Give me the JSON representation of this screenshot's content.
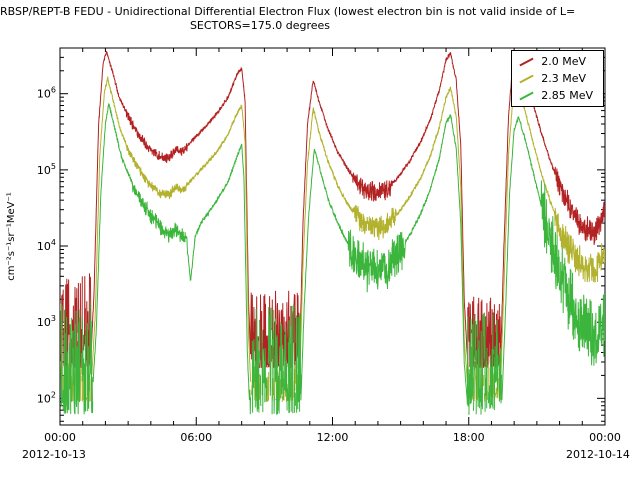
{
  "chart_data": {
    "type": "line",
    "title": "RBSP/REPT-B  FEDU - Unidirectional Differential Electron Flux (lowest electron bin is not valid inside of L=",
    "subtitle": "SECTORS=175.0 degrees",
    "ylabel": "cm⁻²s⁻¹sr⁻¹MeV⁻¹",
    "x_range_hours": [
      0,
      24
    ],
    "ylog_range": [
      1.65,
      6.6
    ],
    "x_start_date": "2012-10-13",
    "x_end_date": "2012-10-14",
    "xticks": [
      {
        "hour": 0,
        "label": "00:00"
      },
      {
        "hour": 6,
        "label": "06:00"
      },
      {
        "hour": 12,
        "label": "12:00"
      },
      {
        "hour": 18,
        "label": "18:00"
      },
      {
        "hour": 24,
        "label": "00:00"
      }
    ],
    "yticks_exp": [
      2,
      3,
      4,
      5,
      6
    ],
    "legend_position": "top-right",
    "series": [
      {
        "name": "2.0 MeV",
        "color": "#b22222",
        "anchors": [
          [
            1.35,
            300
          ],
          [
            1.5,
            2500
          ],
          [
            1.7,
            400000
          ],
          [
            1.9,
            2500000
          ],
          [
            2.05,
            3500000
          ],
          [
            2.3,
            2000000
          ],
          [
            2.6,
            900000
          ],
          [
            3.0,
            500000
          ],
          [
            3.4,
            300000
          ],
          [
            3.9,
            190000
          ],
          [
            4.4,
            150000
          ],
          [
            4.8,
            140000
          ],
          [
            5.1,
            190000
          ],
          [
            5.4,
            170000
          ],
          [
            5.8,
            240000
          ],
          [
            6.2,
            320000
          ],
          [
            6.6,
            430000
          ],
          [
            7.0,
            600000
          ],
          [
            7.4,
            900000
          ],
          [
            7.8,
            1800000
          ],
          [
            8.0,
            2200000
          ],
          [
            8.15,
            800000
          ],
          [
            8.3,
            2000
          ],
          [
            8.4,
            300
          ],
          [
            10.55,
            300
          ],
          [
            10.7,
            20000
          ],
          [
            10.9,
            400000
          ],
          [
            11.15,
            1500000
          ],
          [
            11.4,
            800000
          ],
          [
            11.8,
            350000
          ],
          [
            12.2,
            180000
          ],
          [
            12.6,
            110000
          ],
          [
            13.0,
            75000
          ],
          [
            13.4,
            55000
          ],
          [
            13.9,
            50000
          ],
          [
            14.4,
            55000
          ],
          [
            14.9,
            80000
          ],
          [
            15.4,
            130000
          ],
          [
            15.9,
            240000
          ],
          [
            16.3,
            450000
          ],
          [
            16.7,
            1100000
          ],
          [
            17.0,
            2800000
          ],
          [
            17.2,
            3400000
          ],
          [
            17.45,
            1500000
          ],
          [
            17.65,
            200000
          ],
          [
            17.8,
            2000
          ],
          [
            17.95,
            300
          ],
          [
            19.4,
            300
          ],
          [
            19.55,
            10000
          ],
          [
            19.75,
            500000
          ],
          [
            19.95,
            2800000
          ],
          [
            20.15,
            3700000
          ],
          [
            20.45,
            2000000
          ],
          [
            20.8,
            800000
          ],
          [
            21.2,
            300000
          ],
          [
            21.6,
            130000
          ],
          [
            22.0,
            60000
          ],
          [
            22.4,
            33000
          ],
          [
            22.8,
            21000
          ],
          [
            23.2,
            16000
          ],
          [
            23.6,
            15000
          ],
          [
            24.0,
            28000
          ]
        ],
        "noise": [
          [
            0,
            1.35,
            250,
            4500,
            0.05,
            2
          ],
          [
            8.4,
            10.55,
            250,
            2600,
            0.05,
            2
          ],
          [
            17.95,
            19.4,
            250,
            2200,
            0.05,
            2
          ]
        ],
        "rough": [
          [
            2.9,
            5.6,
            0.05
          ],
          [
            12.9,
            14.6,
            0.1
          ],
          [
            21.8,
            24,
            0.13
          ]
        ]
      },
      {
        "name": "2.3 MeV",
        "color": "#b2b22e",
        "anchors": [
          [
            1.4,
            200
          ],
          [
            1.55,
            1200
          ],
          [
            1.75,
            150000
          ],
          [
            1.95,
            1000000
          ],
          [
            2.1,
            1600000
          ],
          [
            2.35,
            800000
          ],
          [
            2.65,
            340000
          ],
          [
            3.0,
            190000
          ],
          [
            3.4,
            110000
          ],
          [
            3.9,
            66000
          ],
          [
            4.4,
            50000
          ],
          [
            4.8,
            46000
          ],
          [
            5.1,
            60000
          ],
          [
            5.4,
            54000
          ],
          [
            5.8,
            74000
          ],
          [
            6.2,
            100000
          ],
          [
            6.6,
            135000
          ],
          [
            7.0,
            190000
          ],
          [
            7.4,
            290000
          ],
          [
            7.8,
            560000
          ],
          [
            8.0,
            700000
          ],
          [
            8.15,
            240000
          ],
          [
            8.3,
            700
          ],
          [
            8.4,
            150
          ],
          [
            10.55,
            150
          ],
          [
            10.7,
            6000
          ],
          [
            10.9,
            120000
          ],
          [
            11.15,
            650000
          ],
          [
            11.4,
            320000
          ],
          [
            11.8,
            130000
          ],
          [
            12.2,
            65000
          ],
          [
            12.6,
            38000
          ],
          [
            13.0,
            26000
          ],
          [
            13.4,
            19000
          ],
          [
            13.9,
            17000
          ],
          [
            14.4,
            19000
          ],
          [
            14.9,
            27000
          ],
          [
            15.4,
            44000
          ],
          [
            15.9,
            80000
          ],
          [
            16.3,
            150000
          ],
          [
            16.7,
            360000
          ],
          [
            17.0,
            900000
          ],
          [
            17.2,
            1200000
          ],
          [
            17.45,
            500000
          ],
          [
            17.65,
            60000
          ],
          [
            17.8,
            600
          ],
          [
            17.95,
            150
          ],
          [
            19.4,
            150
          ],
          [
            19.55,
            3000
          ],
          [
            19.75,
            160000
          ],
          [
            19.95,
            900000
          ],
          [
            20.15,
            1250000
          ],
          [
            20.45,
            650000
          ],
          [
            20.8,
            250000
          ],
          [
            21.2,
            90000
          ],
          [
            21.6,
            38000
          ],
          [
            22.0,
            17000
          ],
          [
            22.4,
            9500
          ],
          [
            22.8,
            6500
          ],
          [
            23.2,
            5000
          ],
          [
            23.6,
            4800
          ],
          [
            24.0,
            8500
          ]
        ],
        "noise": [
          [
            0,
            1.4,
            90,
            350,
            0.3,
            1.5
          ],
          [
            8.4,
            10.55,
            90,
            300,
            0.35,
            1.5
          ],
          [
            17.95,
            19.4,
            90,
            300,
            0.35,
            1.5
          ]
        ],
        "rough": [
          [
            2.9,
            5.6,
            0.05
          ],
          [
            12.9,
            14.8,
            0.12
          ],
          [
            21.8,
            24,
            0.16
          ]
        ]
      },
      {
        "name": "2.85 MeV",
        "color": "#3cb53c",
        "anchors": [
          [
            1.45,
            150
          ],
          [
            1.6,
            800
          ],
          [
            1.8,
            50000
          ],
          [
            2.0,
            400000
          ],
          [
            2.15,
            750000
          ],
          [
            2.4,
            360000
          ],
          [
            2.7,
            150000
          ],
          [
            3.0,
            90000
          ],
          [
            3.4,
            48000
          ],
          [
            3.9,
            27000
          ],
          [
            4.4,
            18000
          ],
          [
            4.8,
            13500
          ],
          [
            5.1,
            16000
          ],
          [
            5.35,
            13000
          ],
          [
            5.55,
            13500
          ],
          [
            5.75,
            3500
          ],
          [
            5.95,
            13000
          ],
          [
            6.2,
            20000
          ],
          [
            6.6,
            29000
          ],
          [
            7.0,
            44000
          ],
          [
            7.4,
            70000
          ],
          [
            7.8,
            150000
          ],
          [
            8.0,
            220000
          ],
          [
            8.1,
            80000
          ],
          [
            8.25,
            400
          ],
          [
            8.35,
            80
          ],
          [
            10.6,
            80
          ],
          [
            10.75,
            1500
          ],
          [
            10.95,
            25000
          ],
          [
            11.2,
            190000
          ],
          [
            11.45,
            100000
          ],
          [
            11.8,
            42000
          ],
          [
            12.2,
            21000
          ],
          [
            12.6,
            12000
          ],
          [
            13.0,
            7500
          ],
          [
            13.4,
            5200
          ],
          [
            13.9,
            4600
          ],
          [
            14.4,
            5200
          ],
          [
            14.9,
            7800
          ],
          [
            15.4,
            14000
          ],
          [
            15.9,
            27000
          ],
          [
            16.3,
            55000
          ],
          [
            16.7,
            140000
          ],
          [
            17.0,
            420000
          ],
          [
            17.2,
            530000
          ],
          [
            17.45,
            190000
          ],
          [
            17.65,
            20000
          ],
          [
            17.8,
            300
          ],
          [
            17.95,
            80
          ],
          [
            19.45,
            80
          ],
          [
            19.6,
            1000
          ],
          [
            19.8,
            50000
          ],
          [
            20.0,
            340000
          ],
          [
            20.2,
            490000
          ],
          [
            20.5,
            240000
          ],
          [
            20.85,
            90000
          ],
          [
            21.2,
            33000
          ],
          [
            21.6,
            11000
          ],
          [
            22.0,
            4200
          ],
          [
            22.4,
            2000
          ],
          [
            22.8,
            1100
          ],
          [
            23.2,
            750
          ],
          [
            23.6,
            650
          ],
          [
            24.0,
            1100
          ]
        ],
        "noise": [
          [
            0,
            1.45,
            60,
            2000,
            0.2,
            1.3
          ],
          [
            8.35,
            10.6,
            60,
            1700,
            0.25,
            1.3
          ],
          [
            17.95,
            19.45,
            60,
            1300,
            0.25,
            1.3
          ]
        ],
        "rough": [
          [
            3.2,
            5.6,
            0.08
          ],
          [
            12.7,
            15.2,
            0.22
          ],
          [
            21.2,
            24,
            0.33
          ]
        ]
      }
    ]
  }
}
